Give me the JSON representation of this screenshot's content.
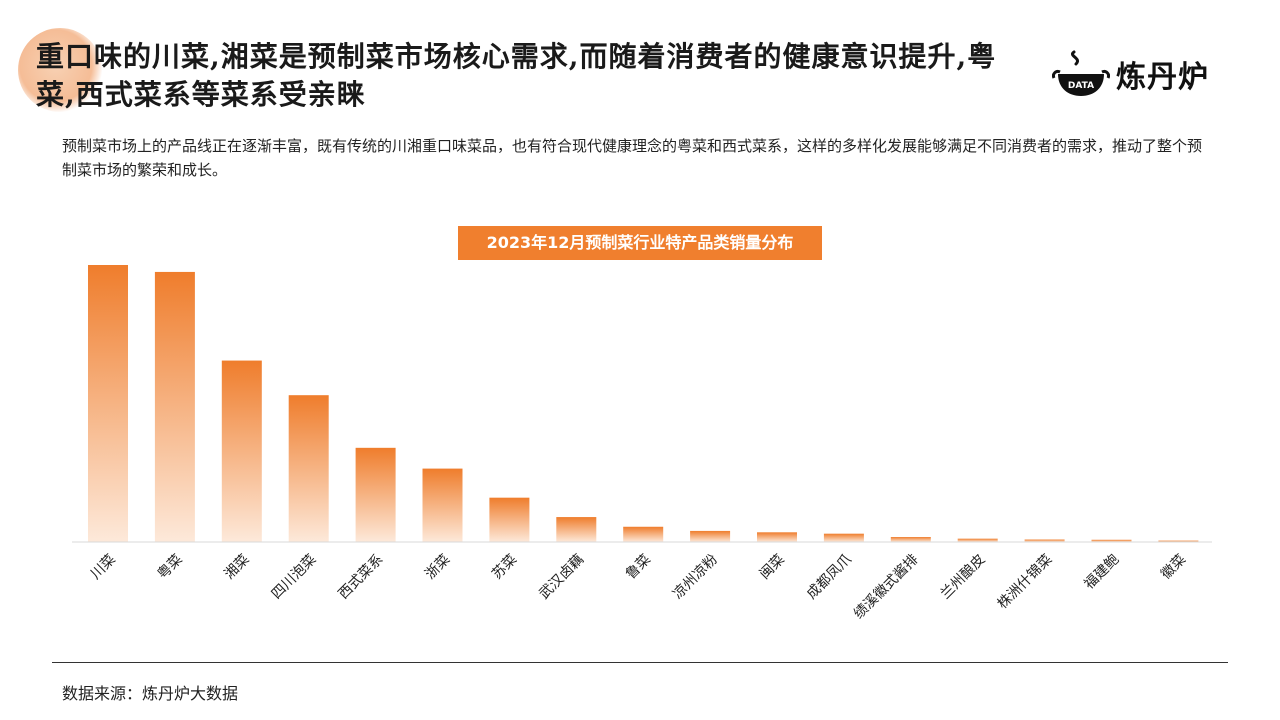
{
  "header": {
    "title": "重口味的川菜,湘菜是预制菜市场核心需求,而随着消费者的健康意识提升,粤菜,西式菜系等菜系受亲睐",
    "logo_text": "炼丹炉",
    "logo_badge": "DATA"
  },
  "description": "预制菜市场上的产品线正在逐渐丰富，既有传统的川湘重口味菜品，也有符合现代健康理念的粤菜和西式菜系，这样的多样化发展能够满足不同消费者的需求，推动了整个预制菜市场的繁荣和成长。",
  "colors": {
    "accent": "#f07f2e",
    "bar_top": "#ef7d2c",
    "bar_bottom": "#fde9da"
  },
  "chart_data": {
    "type": "bar",
    "title": "2023年12月预制菜行业特产品类销量分布",
    "categories": [
      "川菜",
      "粤菜",
      "湘菜",
      "四川泡菜",
      "西式菜系",
      "浙菜",
      "苏菜",
      "武汉卤藕",
      "鲁菜",
      "凉州凉粉",
      "闽菜",
      "成都凤爪",
      "绩溪徽式酱排",
      "兰州酿皮",
      "株洲什锦菜",
      "福建鲍",
      "徽菜"
    ],
    "values": [
      100,
      97.5,
      65.5,
      53,
      34,
      26.5,
      16,
      9,
      5.5,
      4,
      3.5,
      3,
      1.8,
      1.2,
      0.9,
      0.8,
      0.5
    ],
    "ylim": [
      0,
      100
    ],
    "grid": false,
    "legend": "none"
  },
  "footer": {
    "source": "数据来源：炼丹炉大数据"
  }
}
